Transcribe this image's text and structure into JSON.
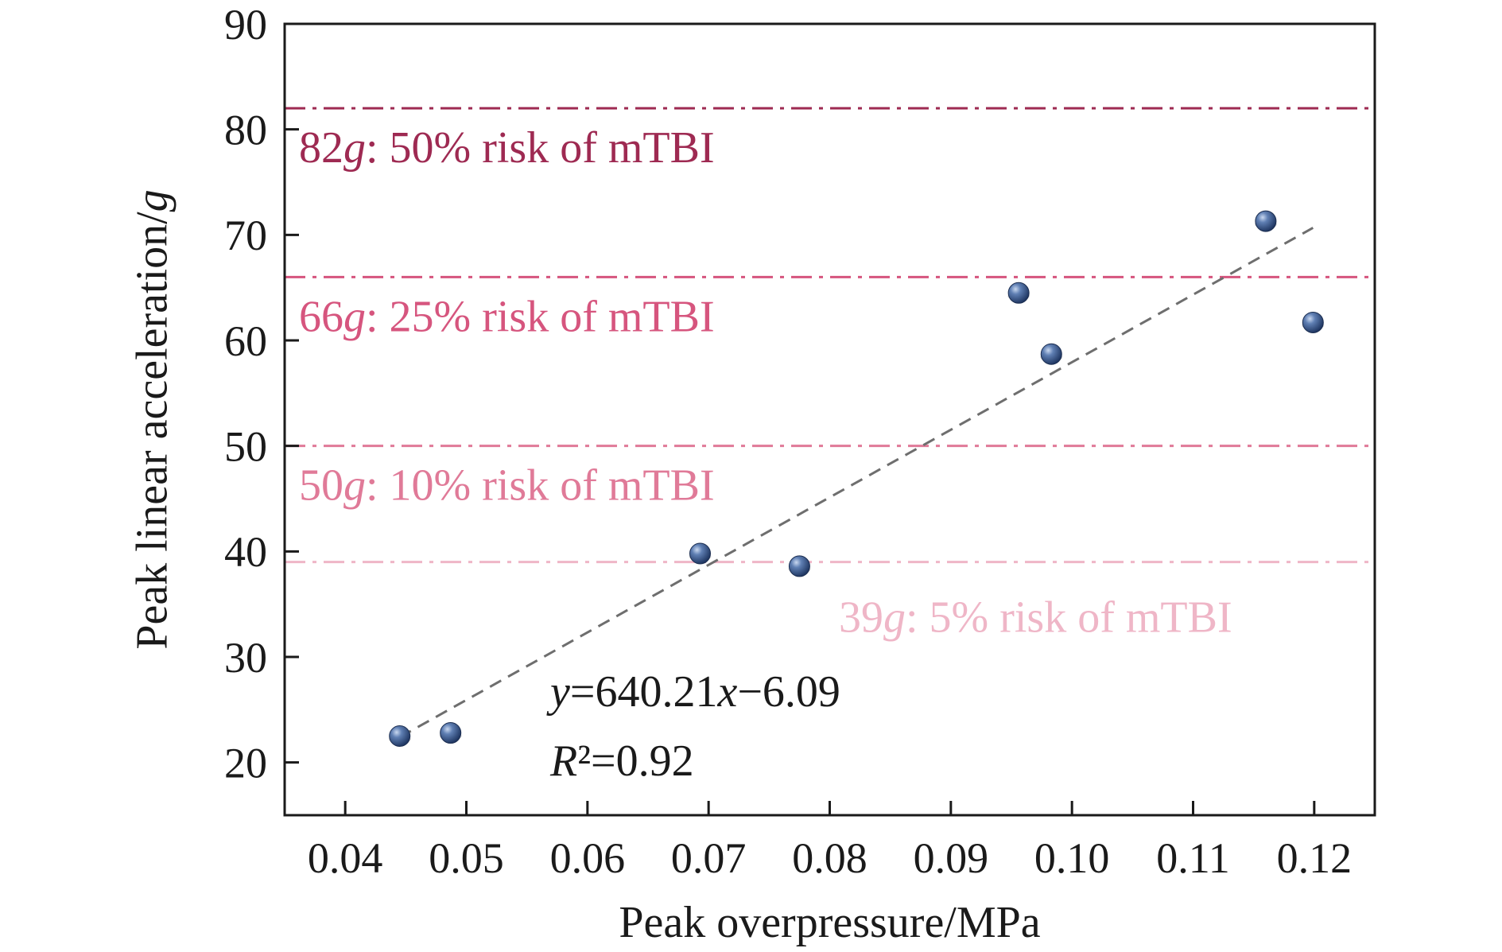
{
  "chart_data": {
    "type": "scatter",
    "xlabel": "Peak overpressure/MPa",
    "ylabel": "Peak linear acceleration/g",
    "xlim": [
      0.035,
      0.125
    ],
    "ylim": [
      15,
      90
    ],
    "x_ticks": [
      "0.04",
      "0.05",
      "0.06",
      "0.07",
      "0.08",
      "0.09",
      "0.10",
      "0.11",
      "0.12"
    ],
    "y_ticks": [
      "20",
      "30",
      "40",
      "50",
      "60",
      "70",
      "80",
      "90"
    ],
    "grid": false,
    "series": [
      {
        "points": [
          {
            "x": 0.0445,
            "y": 22.5
          },
          {
            "x": 0.0487,
            "y": 22.8
          },
          {
            "x": 0.0693,
            "y": 39.8
          },
          {
            "x": 0.0775,
            "y": 38.6
          },
          {
            "x": 0.0956,
            "y": 64.5
          },
          {
            "x": 0.0983,
            "y": 58.7
          },
          {
            "x": 0.116,
            "y": 71.3
          },
          {
            "x": 0.1199,
            "y": 61.7
          }
        ],
        "color": "#3a5a8c"
      }
    ],
    "fit_line": {
      "equation": "y=640.21x−6.09",
      "r_squared": "R²=0.92",
      "slope": 640.21,
      "intercept": -6.09,
      "x_range": [
        0.0445,
        0.1199
      ],
      "color": "#6e6e6e"
    },
    "thresholds": [
      {
        "value": 82,
        "label": "82g: 50% risk of mTBI",
        "color": "#9e2a52"
      },
      {
        "value": 66,
        "label": "66g: 25% risk of mTBI",
        "color": "#d6557e"
      },
      {
        "value": 50,
        "label": "50g: 10% risk of mTBI",
        "color": "#e07a98"
      },
      {
        "value": 39,
        "label": "39g: 5% risk of mTBI",
        "color": "#efb6c7"
      }
    ]
  }
}
